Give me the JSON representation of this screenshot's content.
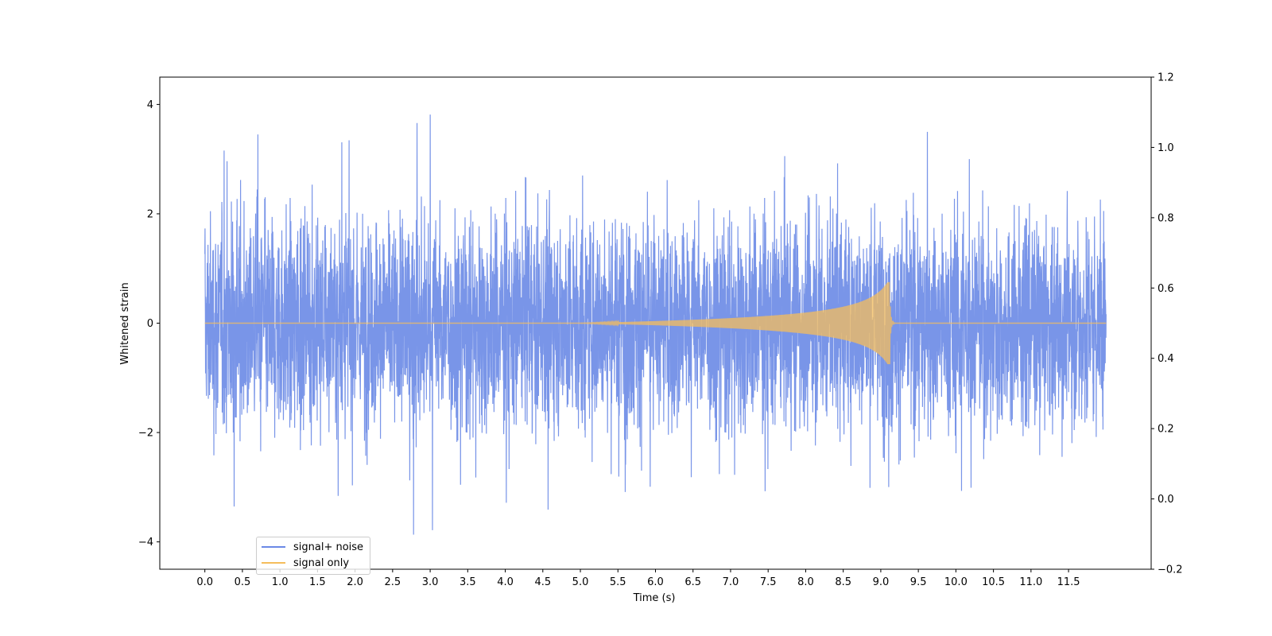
{
  "chart_data": {
    "type": "line",
    "xlabel": "Time (s)",
    "ylabel": "Whitened strain",
    "xlim": [
      -0.6,
      12.6
    ],
    "ylim": [
      -4.5,
      4.5
    ],
    "y2lim": [
      -0.2,
      1.2
    ],
    "x_ticks": [
      "0.0",
      "0.5",
      "1.0",
      "1.5",
      "2.0",
      "2.5",
      "3.0",
      "3.5",
      "4.0",
      "4.5",
      "5.0",
      "5.5",
      "6.0",
      "6.5",
      "7.0",
      "7.5",
      "8.0",
      "8.5",
      "9.0",
      "9.5",
      "10.0",
      "10.5",
      "11.0",
      "11.5"
    ],
    "y_ticks": [
      "4",
      "2",
      "0",
      "−2",
      "−4"
    ],
    "y2_ticks": [
      "1.2",
      "1.0",
      "0.8",
      "0.6",
      "0.4",
      "0.2",
      "0.0",
      "−0.2"
    ],
    "series": [
      {
        "name": "signal+ noise",
        "color": "#6a89e6",
        "x_range": [
          0.0,
          12.0
        ],
        "envelope_upper": [
          2.9,
          3.9,
          3.0,
          2.6,
          3.7,
          3.6,
          3.9,
          2.8,
          2.8,
          2.9,
          3.8,
          4.1,
          3.6,
          2.9,
          2.8,
          3.3,
          3.2,
          2.9,
          3.1,
          3.7,
          3.2,
          3.1,
          3.5,
          3.6,
          3.0
        ],
        "envelope_lower": [
          -2.4,
          -3.9,
          -3.6,
          -3.3,
          -3.2,
          -4.0,
          -4.1,
          -3.0,
          -3.3,
          -3.4,
          -4.1,
          -3.4,
          -3.0,
          -3.0,
          -3.0,
          -3.1,
          -3.5,
          -3.3,
          -3.2,
          -3.0,
          -3.3,
          -3.1,
          -3.9,
          -3.7,
          -2.8
        ]
      },
      {
        "name": "signal only",
        "color": "#f5bd5c",
        "x_range": [
          0.0,
          12.0
        ],
        "chirp_onset": 5.0,
        "peak_time": 9.12,
        "peak_amplitude": 0.75,
        "ringdown_end": 9.2
      }
    ]
  }
}
